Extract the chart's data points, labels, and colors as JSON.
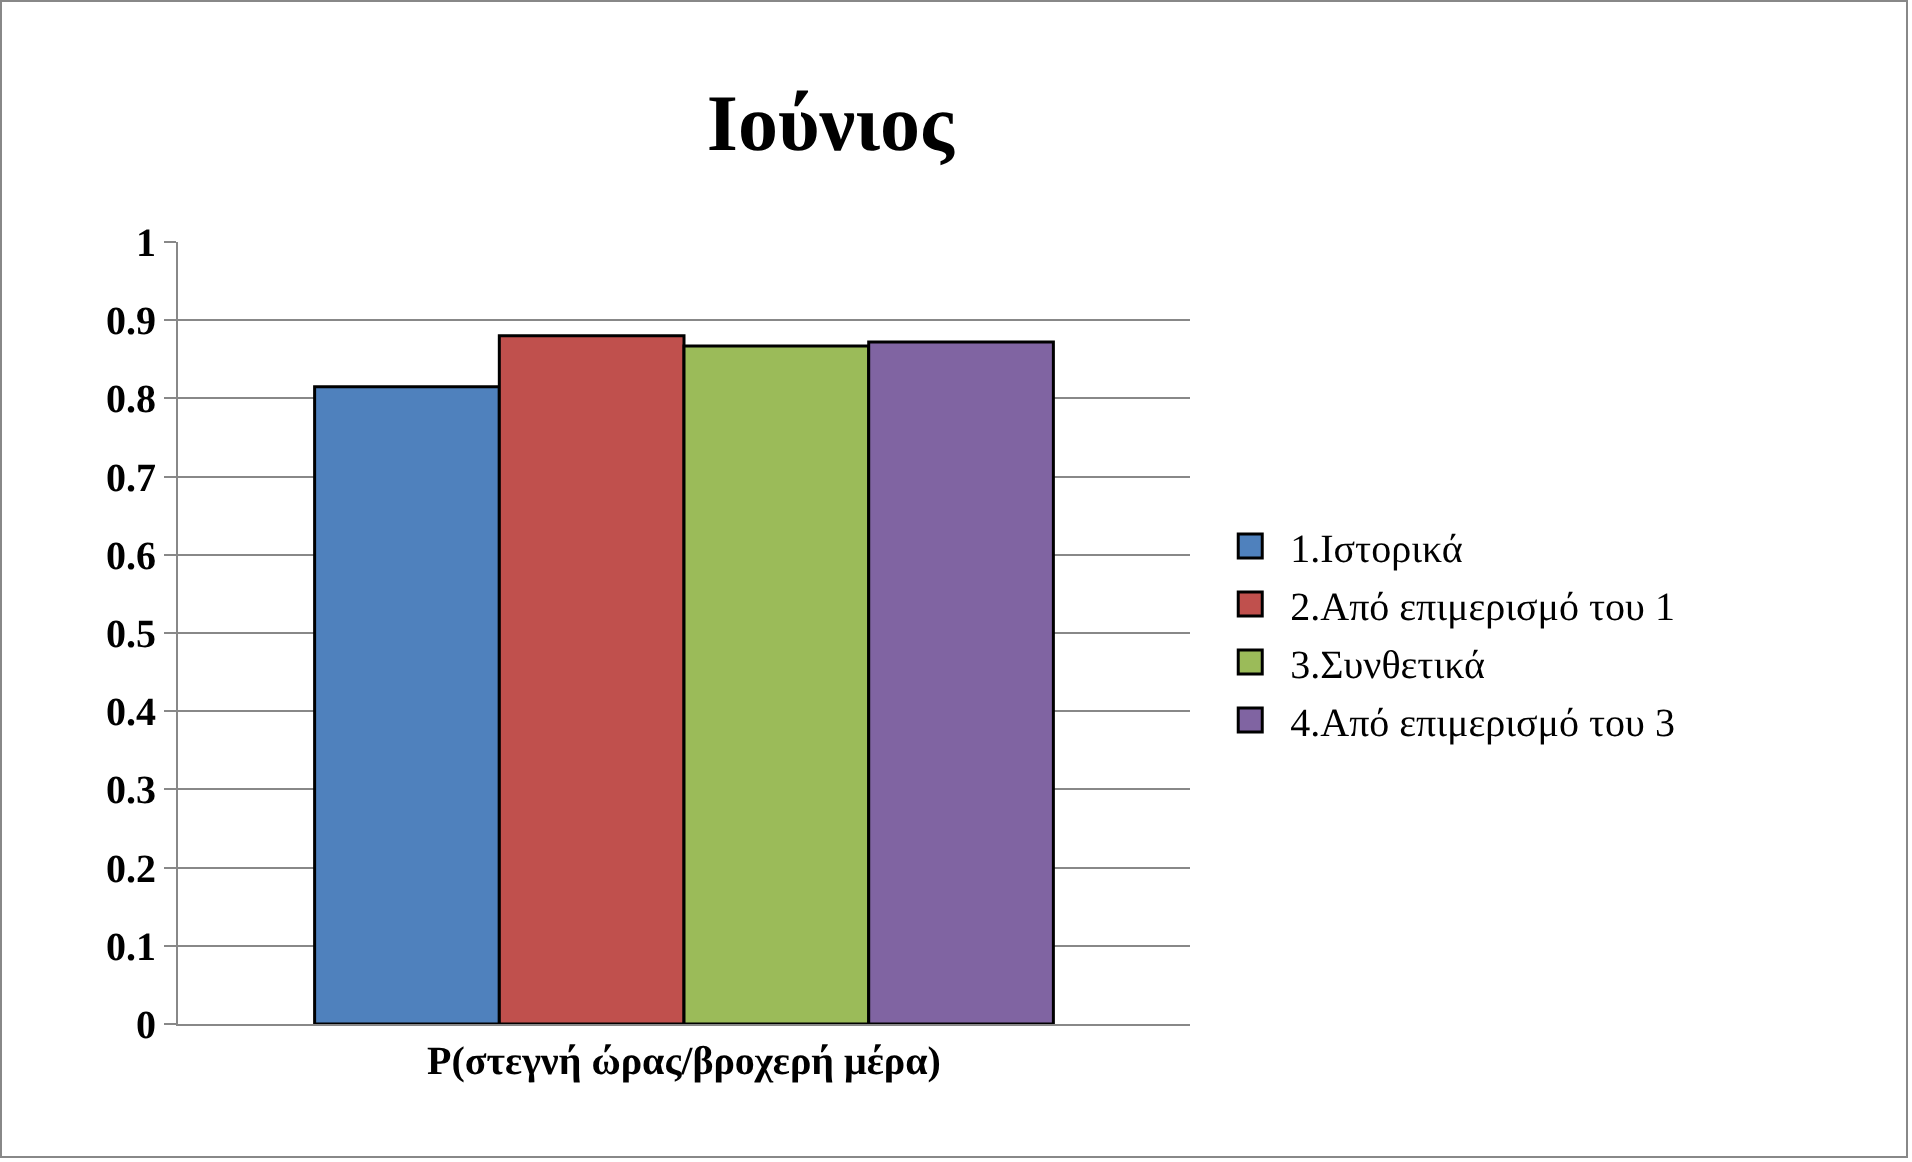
{
  "chart_data": {
    "type": "bar",
    "title": "Ιούνιος",
    "categories": [
      "P(στεγνή ώρας/βροχερή μέρα)"
    ],
    "series": [
      {
        "name": "1.Ιστορικά",
        "color": "#4f81bd",
        "values": [
          0.815
        ]
      },
      {
        "name": "2.Από επιμερισμό του 1",
        "color": "#c0504d",
        "values": [
          0.88
        ]
      },
      {
        "name": "3.Συνθετικά",
        "color": "#9bbb59",
        "values": [
          0.867
        ]
      },
      {
        "name": "4.Από επιμερισμό του 3",
        "color": "#8064a2",
        "values": [
          0.872
        ]
      }
    ],
    "ylim": [
      0,
      1
    ],
    "yticks": [
      0,
      0.1,
      0.2,
      0.3,
      0.4,
      0.5,
      0.6,
      0.7,
      0.8,
      0.9,
      1
    ],
    "grid": "y",
    "legend": "right"
  }
}
